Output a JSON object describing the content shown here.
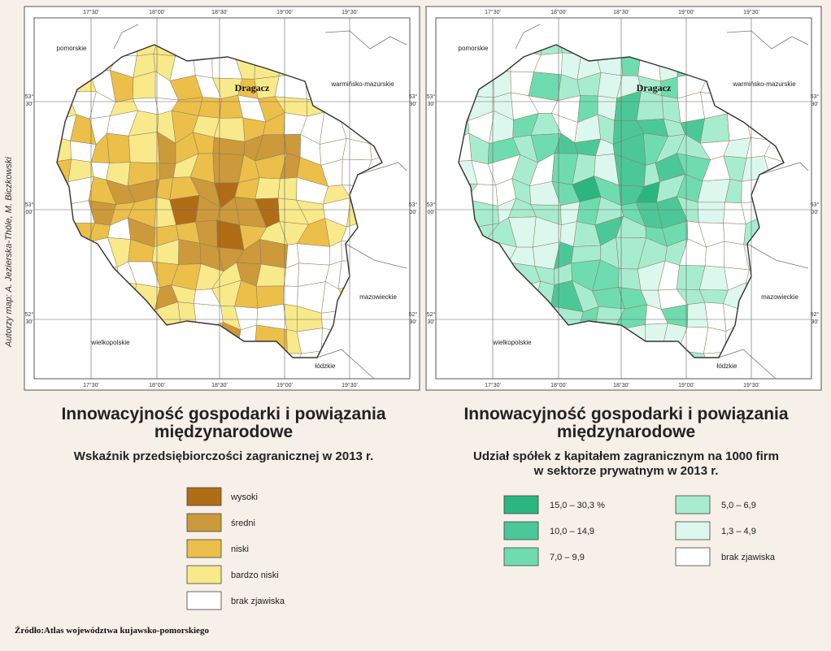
{
  "author": "Autorzy map: A. Jezierska-Thöle, M. Biczkowski",
  "maps": [
    {
      "lon_labels": [
        "17°30'",
        "18°00'",
        "18°30'",
        "19°00'",
        "19°30'"
      ],
      "lat_labels": [
        [
          "53°",
          "30'"
        ],
        [
          "53°",
          "00'"
        ],
        [
          "52°",
          "30'"
        ]
      ],
      "regions": [
        "pomorskie",
        "warmińsko-mazurskie",
        "mazowieckie",
        "wielkopolskie",
        "łódzkie"
      ],
      "place": "Dragacz",
      "title": [
        "Innowacyjność gospodarki i powiązania",
        "międzynarodowe"
      ],
      "subtitle": [
        "Wskaźnik przedsiębiorczości zagranicznej w 2013 r."
      ],
      "legend": [
        {
          "label": "wysoki",
          "color": "#b06d16"
        },
        {
          "label": "średni",
          "color": "#cc9a3a"
        },
        {
          "label": "niski",
          "color": "#ebbf4a"
        },
        {
          "label": "bardzo niski",
          "color": "#f8e98a"
        },
        {
          "label": "brak zjawiska",
          "color": "#ffffff"
        }
      ]
    },
    {
      "lon_labels": [
        "17°30'",
        "18°00'",
        "18°30'",
        "19°00'",
        "19°30'"
      ],
      "lat_labels": [
        [
          "53°",
          "30'"
        ],
        [
          "53°",
          "00'"
        ],
        [
          "52°",
          "30'"
        ]
      ],
      "regions": [
        "pomorskie",
        "warmińsko-mazurskie",
        "mazowieckie",
        "wielkopolskie",
        "łódzkie"
      ],
      "place": "Dragacz",
      "title": [
        "Innowacyjność gospodarki i powiązania",
        "międzynarodowe"
      ],
      "subtitle": [
        "Udział spółek z kapitałem zagranicznym na 1000 firm",
        "w sektorze prywatnym w 2013 r."
      ],
      "legend": [
        {
          "label": "15,0 – 30,3 %",
          "color": "#2bb57f"
        },
        {
          "label": "10,0 – 14,9",
          "color": "#4cc898"
        },
        {
          "label": "7,0 –   9,9",
          "color": "#6fdcb0"
        },
        {
          "label": "5,0 –   6,9",
          "color": "#a8ecd0"
        },
        {
          "label": "1,3 –   4,9",
          "color": "#dcf8ee"
        },
        {
          "label": "brak zjawiska",
          "color": "#ffffff"
        }
      ]
    }
  ],
  "source": "Źródło:Atlas województwa kujawsko-pomorskiego"
}
